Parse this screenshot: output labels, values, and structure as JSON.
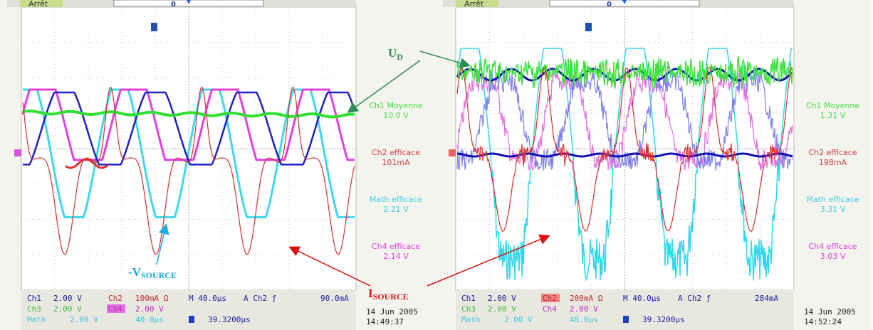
{
  "panels": [
    {
      "status": "Arrêt",
      "trigger_marker": "0",
      "measurements": [
        {
          "label": "Ch1 Moyenne",
          "value": "10.0 V"
        },
        {
          "label": "Ch2 efficace",
          "value": "101mA"
        },
        {
          "label": "Math efficace",
          "value": "2.21 V"
        },
        {
          "label": "Ch4 efficace",
          "value": "2.14 V"
        }
      ],
      "footer": {
        "ch1": "Ch1",
        "ch1_scale": "2.00 V",
        "ch2": "Ch2",
        "ch2_scale": "100mA Ω",
        "timebase": "M 40.0µs",
        "trig": "A  Ch2  ƒ",
        "trig_level": "90.0mA",
        "ch3": "Ch3",
        "ch3_scale": "2.00 V",
        "ch4": "Ch4",
        "ch4_scale": "2.00 V",
        "math": "Math",
        "math_scale": "2.00 V",
        "math_time": "40.0µs",
        "position": "39.3200µs"
      },
      "date": "14 Jun  2005",
      "time": "14:49:37"
    },
    {
      "status": "Arrêt",
      "trigger_marker": "0",
      "measurements": [
        {
          "label": "Ch1 Moyenne",
          "value": "1.31 V"
        },
        {
          "label": "Ch2 efficace",
          "value": "198mA"
        },
        {
          "label": "Math efficace",
          "value": "3.31 V"
        },
        {
          "label": "Ch4 efficace",
          "value": "3.03 V"
        }
      ],
      "footer": {
        "ch1": "Ch1",
        "ch1_scale": "2.00 V",
        "ch2": "Ch2",
        "ch2_scale": "200mA Ω",
        "timebase": "M 40.0µs",
        "trig": "A  Ch2  ƒ",
        "trig_level": "284mA",
        "ch3": "Ch3",
        "ch3_scale": "2.00 V",
        "ch4": "Ch4",
        "ch4_scale": "2.00 V",
        "math": "Math",
        "math_scale": "2.00 V",
        "math_time": "40.0µs",
        "position": "39.3200µs"
      },
      "date": "14 Jun  2005",
      "time": "14:52:24"
    }
  ],
  "annotations": {
    "ud": {
      "main": "U",
      "sub": "D"
    },
    "vsource": {
      "main": "-V",
      "sub": "SOURCE"
    },
    "isource": {
      "main": "I",
      "sub": "SOURCE"
    }
  }
}
